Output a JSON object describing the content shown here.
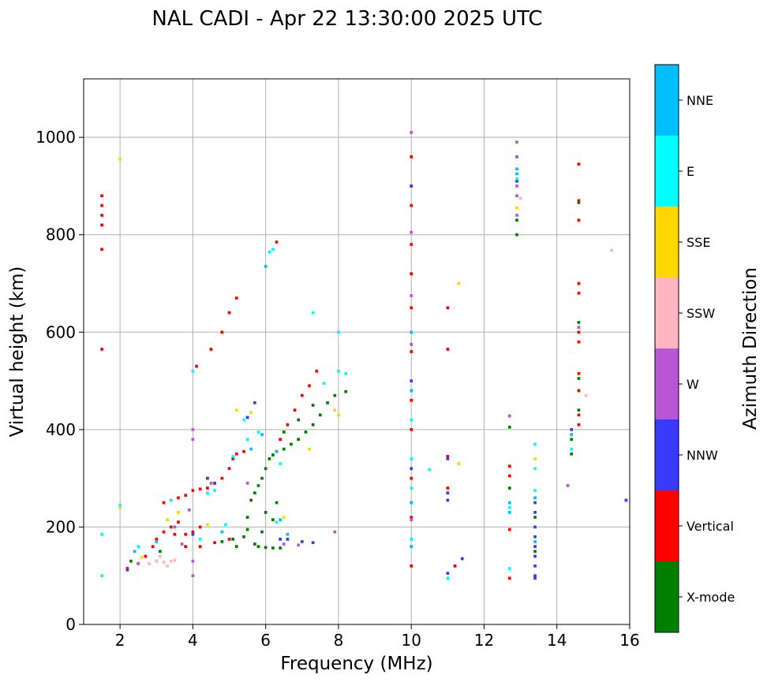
{
  "chart_data": {
    "type": "scatter",
    "title": "NAL CADI - Apr 22 13:30:00 2025 UTC",
    "xlabel": "Frequency (MHz)",
    "ylabel": "Virtual height (km)",
    "xlim": [
      1,
      16
    ],
    "ylim": [
      0,
      1120
    ],
    "xticks": [
      2,
      4,
      6,
      8,
      10,
      12,
      14,
      16
    ],
    "yticks": [
      0,
      200,
      400,
      600,
      800,
      1000
    ],
    "grid": true,
    "cell_width_mhz": 0.08,
    "cell_height_km": 6,
    "colorbar": {
      "label": "Azimuth Direction",
      "categories": [
        "X-mode",
        "Vertical",
        "NNW",
        "W",
        "SSW",
        "SSE",
        "E",
        "NNE"
      ],
      "colors": [
        "#008000",
        "#ff0000",
        "#3a3aff",
        "#b956d6",
        "#ffb6c1",
        "#ffd700",
        "#00ffff",
        "#00bfff"
      ]
    },
    "series": [
      {
        "name": "X-mode",
        "points": [
          [
            5.2,
            160
          ],
          [
            5.4,
            180
          ],
          [
            5.5,
            220
          ],
          [
            5.6,
            255
          ],
          [
            5.7,
            270
          ],
          [
            5.8,
            285
          ],
          [
            5.9,
            300
          ],
          [
            6.0,
            320
          ],
          [
            6.1,
            340
          ],
          [
            6.2,
            348
          ],
          [
            6.3,
            355
          ],
          [
            6.5,
            360
          ],
          [
            6.7,
            370
          ],
          [
            6.9,
            380
          ],
          [
            7.1,
            395
          ],
          [
            7.3,
            410
          ],
          [
            7.5,
            430
          ],
          [
            7.7,
            455
          ],
          [
            7.9,
            470
          ],
          [
            8.2,
            478
          ],
          [
            5.8,
            160
          ],
          [
            6.0,
            158
          ],
          [
            6.2,
            157
          ],
          [
            6.4,
            157
          ],
          [
            6.0,
            230
          ],
          [
            6.2,
            215
          ],
          [
            6.3,
            250
          ],
          [
            5.5,
            195
          ],
          [
            5.7,
            165
          ],
          [
            5.9,
            190
          ],
          [
            12.7,
            405
          ],
          [
            12.7,
            280
          ],
          [
            12.9,
            830
          ],
          [
            12.9,
            800
          ],
          [
            12.9,
            960
          ],
          [
            14.6,
            620
          ],
          [
            14.6,
            505
          ],
          [
            14.6,
            440
          ],
          [
            14.6,
            866
          ],
          [
            14.4,
            380
          ],
          [
            14.4,
            350
          ],
          [
            13.4,
            220
          ],
          [
            13.4,
            150
          ],
          [
            6.5,
            395
          ],
          [
            6.9,
            420
          ],
          [
            7.3,
            450
          ],
          [
            3.1,
            150
          ],
          [
            2.3,
            130
          ],
          [
            4.8,
            170
          ],
          [
            5.1,
            175
          ]
        ]
      },
      {
        "name": "Vertical",
        "points": [
          [
            1.5,
            820
          ],
          [
            1.5,
            840
          ],
          [
            1.5,
            860
          ],
          [
            1.5,
            880
          ],
          [
            1.5,
            770
          ],
          [
            1.5,
            565
          ],
          [
            2.2,
            115
          ],
          [
            2.5,
            125
          ],
          [
            2.7,
            140
          ],
          [
            2.9,
            160
          ],
          [
            3.0,
            175
          ],
          [
            3.2,
            190
          ],
          [
            3.4,
            200
          ],
          [
            3.6,
            210
          ],
          [
            3.5,
            185
          ],
          [
            3.8,
            185
          ],
          [
            4.0,
            190
          ],
          [
            4.2,
            200
          ],
          [
            3.2,
            250
          ],
          [
            3.4,
            255
          ],
          [
            3.6,
            260
          ],
          [
            3.8,
            265
          ],
          [
            4.0,
            275
          ],
          [
            4.2,
            278
          ],
          [
            4.4,
            280
          ],
          [
            4.6,
            290
          ],
          [
            4.8,
            300
          ],
          [
            5.0,
            320
          ],
          [
            5.1,
            340
          ],
          [
            5.2,
            350
          ],
          [
            5.4,
            355
          ],
          [
            4.1,
            530
          ],
          [
            4.5,
            565
          ],
          [
            4.8,
            600
          ],
          [
            5.0,
            640
          ],
          [
            5.2,
            670
          ],
          [
            6.3,
            785
          ],
          [
            6.4,
            380
          ],
          [
            6.6,
            410
          ],
          [
            6.8,
            440
          ],
          [
            7.0,
            470
          ],
          [
            7.2,
            490
          ],
          [
            7.4,
            520
          ],
          [
            3.8,
            160
          ],
          [
            4.2,
            160
          ],
          [
            4.6,
            168
          ],
          [
            5.0,
            175
          ],
          [
            4.4,
            300
          ],
          [
            10.0,
            960
          ],
          [
            10.0,
            900
          ],
          [
            10.0,
            860
          ],
          [
            10.0,
            780
          ],
          [
            10.0,
            720
          ],
          [
            10.0,
            650
          ],
          [
            10.0,
            560
          ],
          [
            10.0,
            460
          ],
          [
            10.0,
            400
          ],
          [
            10.0,
            300
          ],
          [
            10.0,
            220
          ],
          [
            10.0,
            120
          ],
          [
            11.0,
            650
          ],
          [
            11.0,
            565
          ],
          [
            11.0,
            345
          ],
          [
            11.0,
            280
          ],
          [
            11.2,
            120
          ],
          [
            12.7,
            325
          ],
          [
            12.7,
            305
          ],
          [
            12.7,
            195
          ],
          [
            12.7,
            95
          ],
          [
            14.6,
            945
          ],
          [
            14.6,
            870
          ],
          [
            14.6,
            830
          ],
          [
            14.6,
            700
          ],
          [
            14.6,
            680
          ],
          [
            14.6,
            600
          ],
          [
            14.6,
            580
          ],
          [
            14.6,
            515
          ],
          [
            14.6,
            480
          ],
          [
            14.6,
            430
          ],
          [
            14.6,
            410
          ]
        ]
      },
      {
        "name": "NNW",
        "points": [
          [
            2.2,
            112
          ],
          [
            3.0,
            130
          ],
          [
            4.4,
            300
          ],
          [
            4.6,
            290
          ],
          [
            5.7,
            455
          ],
          [
            5.5,
            425
          ],
          [
            6.4,
            175
          ],
          [
            6.6,
            175
          ],
          [
            7.0,
            170
          ],
          [
            7.3,
            168
          ],
          [
            10.0,
            900
          ],
          [
            10.0,
            500
          ],
          [
            10.0,
            320
          ],
          [
            11.0,
            270
          ],
          [
            11.0,
            255
          ],
          [
            11.0,
            105
          ],
          [
            11.0,
            340
          ],
          [
            13.4,
            250
          ],
          [
            13.4,
            230
          ],
          [
            13.4,
            200
          ],
          [
            13.4,
            180
          ],
          [
            13.4,
            160
          ],
          [
            13.4,
            140
          ],
          [
            13.4,
            120
          ],
          [
            13.4,
            100
          ],
          [
            13.4,
            95
          ],
          [
            12.9,
            910
          ],
          [
            14.4,
            400
          ],
          [
            15.9,
            255
          ],
          [
            11.4,
            135
          ],
          [
            4.0,
            185
          ]
        ]
      },
      {
        "name": "W",
        "points": [
          [
            4.0,
            400
          ],
          [
            4.0,
            380
          ],
          [
            4.0,
            130
          ],
          [
            4.0,
            100
          ],
          [
            3.9,
            235
          ],
          [
            4.5,
            290
          ],
          [
            5.5,
            290
          ],
          [
            7.9,
            190
          ],
          [
            12.7,
            428
          ],
          [
            12.9,
            990
          ],
          [
            12.9,
            960
          ],
          [
            12.9,
            900
          ],
          [
            12.9,
            880
          ],
          [
            12.9,
            840
          ],
          [
            14.6,
            610
          ],
          [
            14.3,
            285
          ],
          [
            10.0,
            1010
          ],
          [
            10.0,
            805
          ],
          [
            10.0,
            675
          ],
          [
            10.0,
            575
          ],
          [
            10.0,
            215
          ],
          [
            3.5,
            200
          ],
          [
            3.7,
            165
          ],
          [
            6.5,
            165
          ],
          [
            6.9,
            163
          ],
          [
            2.5,
            125
          ]
        ]
      },
      {
        "name": "SSW",
        "points": [
          [
            2.8,
            125
          ],
          [
            3.0,
            130
          ],
          [
            3.2,
            128
          ],
          [
            3.4,
            130
          ],
          [
            3.5,
            132
          ],
          [
            3.3,
            120
          ],
          [
            3.1,
            140
          ],
          [
            15.5,
            768
          ],
          [
            14.8,
            470
          ],
          [
            13.0,
            875
          ]
        ]
      },
      {
        "name": "SSE",
        "points": [
          [
            2.0,
            955
          ],
          [
            2.0,
            240
          ],
          [
            2.6,
            138
          ],
          [
            3.6,
            230
          ],
          [
            5.2,
            440
          ],
          [
            5.6,
            435
          ],
          [
            6.5,
            220
          ],
          [
            7.2,
            360
          ],
          [
            7.9,
            440
          ],
          [
            8.0,
            430
          ],
          [
            11.3,
            700
          ],
          [
            11.3,
            330
          ],
          [
            13.4,
            340
          ],
          [
            12.9,
            855
          ],
          [
            3.3,
            215
          ],
          [
            4.4,
            205
          ]
        ]
      },
      {
        "name": "E",
        "points": [
          [
            1.5,
            185
          ],
          [
            1.5,
            100
          ],
          [
            2.0,
            245
          ],
          [
            2.5,
            160
          ],
          [
            3.4,
            255
          ],
          [
            4.0,
            520
          ],
          [
            4.4,
            270
          ],
          [
            4.6,
            275
          ],
          [
            5.1,
            345
          ],
          [
            5.4,
            420
          ],
          [
            5.5,
            380
          ],
          [
            5.8,
            395
          ],
          [
            6.1,
            765
          ],
          [
            6.2,
            770
          ],
          [
            6.3,
            210
          ],
          [
            6.4,
            330
          ],
          [
            7.3,
            640
          ],
          [
            7.6,
            495
          ],
          [
            8.0,
            600
          ],
          [
            8.0,
            520
          ],
          [
            8.2,
            515
          ],
          [
            10.0,
            420
          ],
          [
            10.0,
            340
          ],
          [
            10.0,
            280
          ],
          [
            10.0,
            175
          ],
          [
            10.5,
            318
          ],
          [
            11.0,
            95
          ],
          [
            12.7,
            240
          ],
          [
            12.7,
            115
          ],
          [
            13.4,
            275
          ],
          [
            13.4,
            370
          ],
          [
            13.4,
            320
          ],
          [
            14.4,
            360
          ],
          [
            12.9,
            915
          ],
          [
            4.2,
            175
          ],
          [
            4.9,
            205
          ]
        ]
      },
      {
        "name": "NNE",
        "points": [
          [
            5.6,
            360
          ],
          [
            5.9,
            390
          ],
          [
            6.3,
            355
          ],
          [
            6.4,
            215
          ],
          [
            6.6,
            185
          ],
          [
            6.0,
            735
          ],
          [
            10.0,
            600
          ],
          [
            10.0,
            480
          ],
          [
            10.0,
            250
          ],
          [
            10.0,
            160
          ],
          [
            12.7,
            250
          ],
          [
            12.7,
            230
          ],
          [
            12.9,
            935
          ],
          [
            12.9,
            925
          ],
          [
            13.4,
            260
          ],
          [
            13.4,
            170
          ],
          [
            14.4,
            390
          ],
          [
            3.0,
            170
          ],
          [
            4.8,
            190
          ],
          [
            2.4,
            150
          ]
        ]
      }
    ]
  }
}
